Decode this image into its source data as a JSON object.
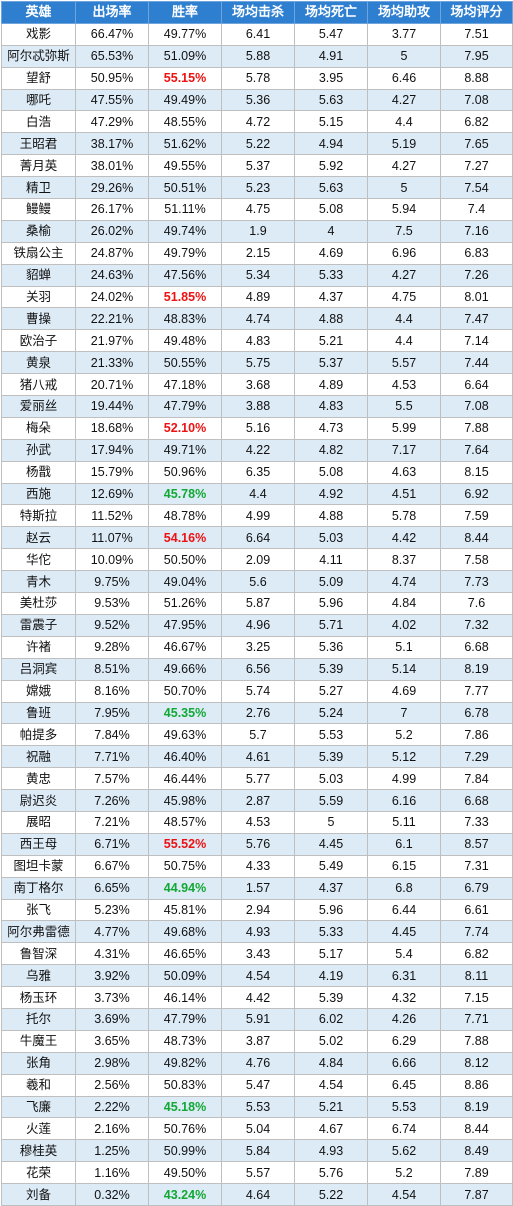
{
  "columns": [
    "英雄",
    "出场率",
    "胜率",
    "场均击杀",
    "场均死亡",
    "场均助攻",
    "场均评分"
  ],
  "colors": {
    "header_bg": "#2e7fd0",
    "stripe": "#ddebf7",
    "high_win": "#ee1111",
    "low_win": "#11a833"
  },
  "rows": [
    {
      "hero": "戏影",
      "pick": "66.47%",
      "win": "49.77%",
      "kills": "6.41",
      "deaths": "5.47",
      "assists": "3.77",
      "score": "7.51",
      "hl": ""
    },
    {
      "hero": "阿尔忒弥斯",
      "pick": "65.53%",
      "win": "51.09%",
      "kills": "5.88",
      "deaths": "4.91",
      "assists": "5",
      "score": "7.95",
      "hl": ""
    },
    {
      "hero": "望舒",
      "pick": "50.95%",
      "win": "55.15%",
      "kills": "5.78",
      "deaths": "3.95",
      "assists": "6.46",
      "score": "8.88",
      "hl": "red"
    },
    {
      "hero": "哪吒",
      "pick": "47.55%",
      "win": "49.49%",
      "kills": "5.36",
      "deaths": "5.63",
      "assists": "4.27",
      "score": "7.08",
      "hl": ""
    },
    {
      "hero": "白浩",
      "pick": "47.29%",
      "win": "48.55%",
      "kills": "4.72",
      "deaths": "5.15",
      "assists": "4.4",
      "score": "6.82",
      "hl": ""
    },
    {
      "hero": "王昭君",
      "pick": "38.17%",
      "win": "51.62%",
      "kills": "5.22",
      "deaths": "4.94",
      "assists": "5.19",
      "score": "7.65",
      "hl": ""
    },
    {
      "hero": "菁月英",
      "pick": "38.01%",
      "win": "49.55%",
      "kills": "5.37",
      "deaths": "5.92",
      "assists": "4.27",
      "score": "7.27",
      "hl": ""
    },
    {
      "hero": "精卫",
      "pick": "29.26%",
      "win": "50.51%",
      "kills": "5.23",
      "deaths": "5.63",
      "assists": "5",
      "score": "7.54",
      "hl": ""
    },
    {
      "hero": "鳗鳗",
      "pick": "26.17%",
      "win": "51.11%",
      "kills": "4.75",
      "deaths": "5.08",
      "assists": "5.94",
      "score": "7.4",
      "hl": ""
    },
    {
      "hero": "桑榆",
      "pick": "26.02%",
      "win": "49.74%",
      "kills": "1.9",
      "deaths": "4",
      "assists": "7.5",
      "score": "7.16",
      "hl": ""
    },
    {
      "hero": "铁扇公主",
      "pick": "24.87%",
      "win": "49.79%",
      "kills": "2.15",
      "deaths": "4.69",
      "assists": "6.96",
      "score": "6.83",
      "hl": ""
    },
    {
      "hero": "貂蝉",
      "pick": "24.63%",
      "win": "47.56%",
      "kills": "5.34",
      "deaths": "5.33",
      "assists": "4.27",
      "score": "7.26",
      "hl": ""
    },
    {
      "hero": "关羽",
      "pick": "24.02%",
      "win": "51.85%",
      "kills": "4.89",
      "deaths": "4.37",
      "assists": "4.75",
      "score": "8.01",
      "hl": "red"
    },
    {
      "hero": "曹操",
      "pick": "22.21%",
      "win": "48.83%",
      "kills": "4.74",
      "deaths": "4.88",
      "assists": "4.4",
      "score": "7.47",
      "hl": ""
    },
    {
      "hero": "欧治子",
      "pick": "21.97%",
      "win": "49.48%",
      "kills": "4.83",
      "deaths": "5.21",
      "assists": "4.4",
      "score": "7.14",
      "hl": ""
    },
    {
      "hero": "黄泉",
      "pick": "21.33%",
      "win": "50.55%",
      "kills": "5.75",
      "deaths": "5.37",
      "assists": "5.57",
      "score": "7.44",
      "hl": ""
    },
    {
      "hero": "猪八戒",
      "pick": "20.71%",
      "win": "47.18%",
      "kills": "3.68",
      "deaths": "4.89",
      "assists": "4.53",
      "score": "6.64",
      "hl": ""
    },
    {
      "hero": "爱丽丝",
      "pick": "19.44%",
      "win": "47.79%",
      "kills": "3.88",
      "deaths": "4.83",
      "assists": "5.5",
      "score": "7.08",
      "hl": ""
    },
    {
      "hero": "梅朵",
      "pick": "18.68%",
      "win": "52.10%",
      "kills": "5.16",
      "deaths": "4.73",
      "assists": "5.99",
      "score": "7.88",
      "hl": "red"
    },
    {
      "hero": "孙武",
      "pick": "17.94%",
      "win": "49.71%",
      "kills": "4.22",
      "deaths": "4.82",
      "assists": "7.17",
      "score": "7.64",
      "hl": ""
    },
    {
      "hero": "杨戬",
      "pick": "15.79%",
      "win": "50.96%",
      "kills": "6.35",
      "deaths": "5.08",
      "assists": "4.63",
      "score": "8.15",
      "hl": ""
    },
    {
      "hero": "西施",
      "pick": "12.69%",
      "win": "45.78%",
      "kills": "4.4",
      "deaths": "4.92",
      "assists": "4.51",
      "score": "6.92",
      "hl": "green"
    },
    {
      "hero": "特斯拉",
      "pick": "11.52%",
      "win": "48.78%",
      "kills": "4.99",
      "deaths": "4.88",
      "assists": "5.78",
      "score": "7.59",
      "hl": ""
    },
    {
      "hero": "赵云",
      "pick": "11.07%",
      "win": "54.16%",
      "kills": "6.64",
      "deaths": "5.03",
      "assists": "4.42",
      "score": "8.44",
      "hl": "red"
    },
    {
      "hero": "华佗",
      "pick": "10.09%",
      "win": "50.50%",
      "kills": "2.09",
      "deaths": "4.11",
      "assists": "8.37",
      "score": "7.58",
      "hl": ""
    },
    {
      "hero": "青木",
      "pick": "9.75%",
      "win": "49.04%",
      "kills": "5.6",
      "deaths": "5.09",
      "assists": "4.74",
      "score": "7.73",
      "hl": ""
    },
    {
      "hero": "美杜莎",
      "pick": "9.53%",
      "win": "51.26%",
      "kills": "5.87",
      "deaths": "5.96",
      "assists": "4.84",
      "score": "7.6",
      "hl": ""
    },
    {
      "hero": "雷震子",
      "pick": "9.52%",
      "win": "47.95%",
      "kills": "4.96",
      "deaths": "5.71",
      "assists": "4.02",
      "score": "7.32",
      "hl": ""
    },
    {
      "hero": "许褚",
      "pick": "9.28%",
      "win": "46.67%",
      "kills": "3.25",
      "deaths": "5.36",
      "assists": "5.1",
      "score": "6.68",
      "hl": ""
    },
    {
      "hero": "吕洞宾",
      "pick": "8.51%",
      "win": "49.66%",
      "kills": "6.56",
      "deaths": "5.39",
      "assists": "5.14",
      "score": "8.19",
      "hl": ""
    },
    {
      "hero": "嫦娥",
      "pick": "8.16%",
      "win": "50.70%",
      "kills": "5.74",
      "deaths": "5.27",
      "assists": "4.69",
      "score": "7.77",
      "hl": ""
    },
    {
      "hero": "鲁班",
      "pick": "7.95%",
      "win": "45.35%",
      "kills": "2.76",
      "deaths": "5.24",
      "assists": "7",
      "score": "6.78",
      "hl": "green"
    },
    {
      "hero": "帕提多",
      "pick": "7.84%",
      "win": "49.63%",
      "kills": "5.7",
      "deaths": "5.53",
      "assists": "5.2",
      "score": "7.86",
      "hl": ""
    },
    {
      "hero": "祝融",
      "pick": "7.71%",
      "win": "46.40%",
      "kills": "4.61",
      "deaths": "5.39",
      "assists": "5.12",
      "score": "7.29",
      "hl": ""
    },
    {
      "hero": "黄忠",
      "pick": "7.57%",
      "win": "46.44%",
      "kills": "5.77",
      "deaths": "5.03",
      "assists": "4.99",
      "score": "7.84",
      "hl": ""
    },
    {
      "hero": "尉迟炎",
      "pick": "7.26%",
      "win": "45.98%",
      "kills": "2.87",
      "deaths": "5.59",
      "assists": "6.16",
      "score": "6.68",
      "hl": ""
    },
    {
      "hero": "展昭",
      "pick": "7.21%",
      "win": "48.57%",
      "kills": "4.53",
      "deaths": "5",
      "assists": "5.11",
      "score": "7.33",
      "hl": ""
    },
    {
      "hero": "西王母",
      "pick": "6.71%",
      "win": "55.52%",
      "kills": "5.76",
      "deaths": "4.45",
      "assists": "6.1",
      "score": "8.57",
      "hl": "red"
    },
    {
      "hero": "图坦卡蒙",
      "pick": "6.67%",
      "win": "50.75%",
      "kills": "4.33",
      "deaths": "5.49",
      "assists": "6.15",
      "score": "7.31",
      "hl": ""
    },
    {
      "hero": "南丁格尔",
      "pick": "6.65%",
      "win": "44.94%",
      "kills": "1.57",
      "deaths": "4.37",
      "assists": "6.8",
      "score": "6.79",
      "hl": "green"
    },
    {
      "hero": "张飞",
      "pick": "5.23%",
      "win": "45.81%",
      "kills": "2.94",
      "deaths": "5.96",
      "assists": "6.44",
      "score": "6.61",
      "hl": ""
    },
    {
      "hero": "阿尔弗雷德",
      "pick": "4.77%",
      "win": "49.68%",
      "kills": "4.93",
      "deaths": "5.33",
      "assists": "4.45",
      "score": "7.74",
      "hl": ""
    },
    {
      "hero": "鲁智深",
      "pick": "4.31%",
      "win": "46.65%",
      "kills": "3.43",
      "deaths": "5.17",
      "assists": "5.4",
      "score": "6.82",
      "hl": ""
    },
    {
      "hero": "乌雅",
      "pick": "3.92%",
      "win": "50.09%",
      "kills": "4.54",
      "deaths": "4.19",
      "assists": "6.31",
      "score": "8.11",
      "hl": ""
    },
    {
      "hero": "杨玉环",
      "pick": "3.73%",
      "win": "46.14%",
      "kills": "4.42",
      "deaths": "5.39",
      "assists": "4.32",
      "score": "7.15",
      "hl": ""
    },
    {
      "hero": "托尔",
      "pick": "3.69%",
      "win": "47.79%",
      "kills": "5.91",
      "deaths": "6.02",
      "assists": "4.26",
      "score": "7.71",
      "hl": ""
    },
    {
      "hero": "牛魔王",
      "pick": "3.65%",
      "win": "48.73%",
      "kills": "3.87",
      "deaths": "5.02",
      "assists": "6.29",
      "score": "7.88",
      "hl": ""
    },
    {
      "hero": "张角",
      "pick": "2.98%",
      "win": "49.82%",
      "kills": "4.76",
      "deaths": "4.84",
      "assists": "6.66",
      "score": "8.12",
      "hl": ""
    },
    {
      "hero": "羲和",
      "pick": "2.56%",
      "win": "50.83%",
      "kills": "5.47",
      "deaths": "4.54",
      "assists": "6.45",
      "score": "8.86",
      "hl": ""
    },
    {
      "hero": "飞廉",
      "pick": "2.22%",
      "win": "45.18%",
      "kills": "5.53",
      "deaths": "5.21",
      "assists": "5.53",
      "score": "8.19",
      "hl": "green"
    },
    {
      "hero": "火莲",
      "pick": "2.16%",
      "win": "50.76%",
      "kills": "5.04",
      "deaths": "4.67",
      "assists": "6.74",
      "score": "8.44",
      "hl": ""
    },
    {
      "hero": "穆桂英",
      "pick": "1.25%",
      "win": "50.99%",
      "kills": "5.84",
      "deaths": "4.93",
      "assists": "5.62",
      "score": "8.49",
      "hl": ""
    },
    {
      "hero": "花荣",
      "pick": "1.16%",
      "win": "49.50%",
      "kills": "5.57",
      "deaths": "5.76",
      "assists": "5.2",
      "score": "7.89",
      "hl": ""
    },
    {
      "hero": "刘备",
      "pick": "0.32%",
      "win": "43.24%",
      "kills": "4.64",
      "deaths": "5.22",
      "assists": "4.54",
      "score": "7.87",
      "hl": "green"
    }
  ]
}
